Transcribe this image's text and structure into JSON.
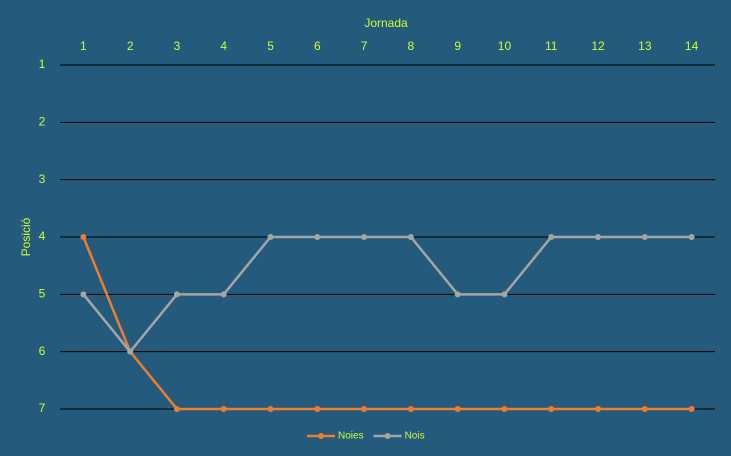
{
  "chart_data": {
    "type": "line",
    "x_label": "Jornada",
    "y_label": "Posició",
    "categories": [
      "1",
      "2",
      "3",
      "4",
      "5",
      "6",
      "7",
      "8",
      "9",
      "10",
      "11",
      "12",
      "13",
      "14"
    ],
    "series": [
      {
        "name": "Noies",
        "color": "#ed7d31",
        "values": [
          4,
          6,
          7,
          7,
          7,
          7,
          7,
          7,
          7,
          7,
          7,
          7,
          7,
          7
        ]
      },
      {
        "name": "Nois",
        "color": "#a5a5a5",
        "values": [
          5,
          6,
          5,
          5,
          4,
          4,
          4,
          4,
          5,
          5,
          4,
          4,
          4,
          4
        ]
      }
    ],
    "ylim": [
      1,
      7
    ],
    "yticks": [
      1,
      2,
      3,
      4,
      5,
      6,
      7
    ],
    "y_reversed": true,
    "x_axis_position": "top",
    "grid": true,
    "legend": "bottom"
  }
}
